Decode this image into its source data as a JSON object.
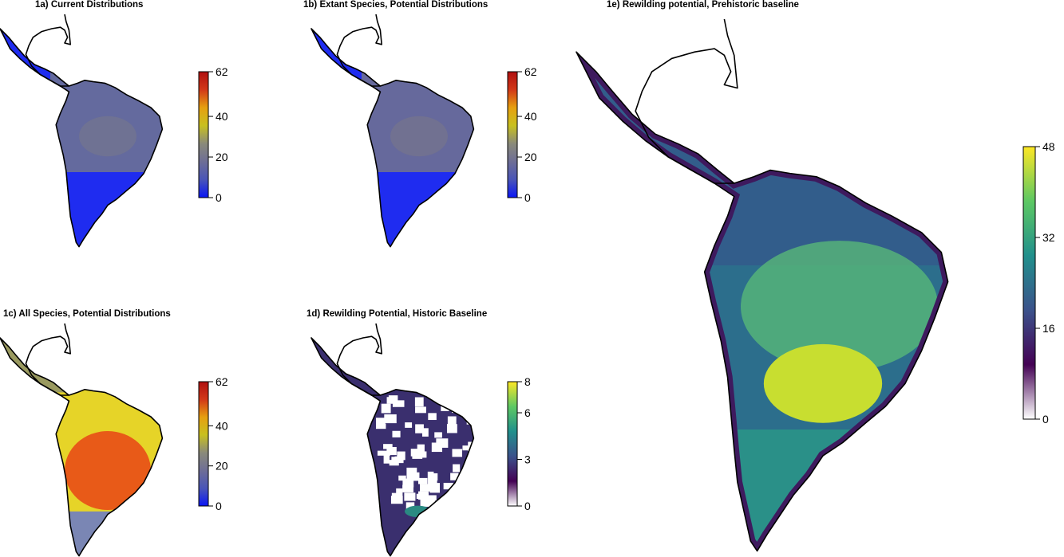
{
  "panels": [
    {
      "id": "1a",
      "title": "1a) Current Distributions",
      "scale": {
        "ticks": [
          "0",
          "20",
          "40",
          "62"
        ],
        "values": [
          0,
          20,
          40,
          62
        ],
        "max": 62,
        "colors": [
          "#0a16f5",
          "#4a55b8",
          "#6e6e96",
          "#8a8a7a",
          "#c8c020",
          "#e6a010",
          "#d23818",
          "#b01010"
        ]
      }
    },
    {
      "id": "1b",
      "title": "1b) Extant Species, Potential Distributions",
      "scale": {
        "ticks": [
          "0",
          "20",
          "40",
          "62"
        ],
        "values": [
          0,
          20,
          40,
          62
        ],
        "max": 62,
        "colors": [
          "#0a16f5",
          "#4a55b8",
          "#6e6e96",
          "#8a8a7a",
          "#c8c020",
          "#e6a010",
          "#d23818",
          "#b01010"
        ]
      }
    },
    {
      "id": "1c",
      "title": "1c) All Species, Potential Distributions",
      "scale": {
        "ticks": [
          "0",
          "20",
          "40",
          "62"
        ],
        "values": [
          0,
          20,
          40,
          62
        ],
        "max": 62,
        "colors": [
          "#0a16f5",
          "#4a55b8",
          "#6e6e96",
          "#8a8a7a",
          "#c8c020",
          "#e6a010",
          "#d23818",
          "#b01010"
        ]
      }
    },
    {
      "id": "1d",
      "title": "1d) Rewilding Potential, Historic Baseline",
      "scale": {
        "ticks": [
          "0",
          "3",
          "6",
          "8"
        ],
        "values": [
          0,
          3,
          6,
          8
        ],
        "max": 8,
        "colors": [
          "#ffffff",
          "#440154",
          "#3b528b",
          "#21908c",
          "#5dc863",
          "#fde725"
        ]
      }
    },
    {
      "id": "1e",
      "title": "1e) Rewilding potential, Prehistoric baseline",
      "scale": {
        "ticks": [
          "0",
          "16",
          "32",
          "48"
        ],
        "values": [
          0,
          16,
          32,
          48
        ],
        "max": 48,
        "colors": [
          "#ffffff",
          "#440154",
          "#3b528b",
          "#21908c",
          "#5dc863",
          "#fde725"
        ]
      }
    }
  ],
  "fills": {
    "1a": {
      "land": "#646a9e",
      "south": "#1f2cf0",
      "accent": "#7a7a88"
    },
    "1b": {
      "land": "#66699c",
      "south": "#1f2cf0",
      "accent": "#7c7a86"
    },
    "1c": {
      "land": "#e6d428",
      "hot": "#e85a18",
      "south": "#7a86b4",
      "central": "#9a9a60"
    },
    "1d": {
      "land": "#3a2f6e",
      "gap": "#ffffff",
      "green": "#2a8a82"
    },
    "1e": {
      "land": "#2c6e8c",
      "north": "#35568a",
      "hot": "#c8de30",
      "mid": "#57b878",
      "south": "#2a9088",
      "edge": "#3e1a5e"
    }
  }
}
